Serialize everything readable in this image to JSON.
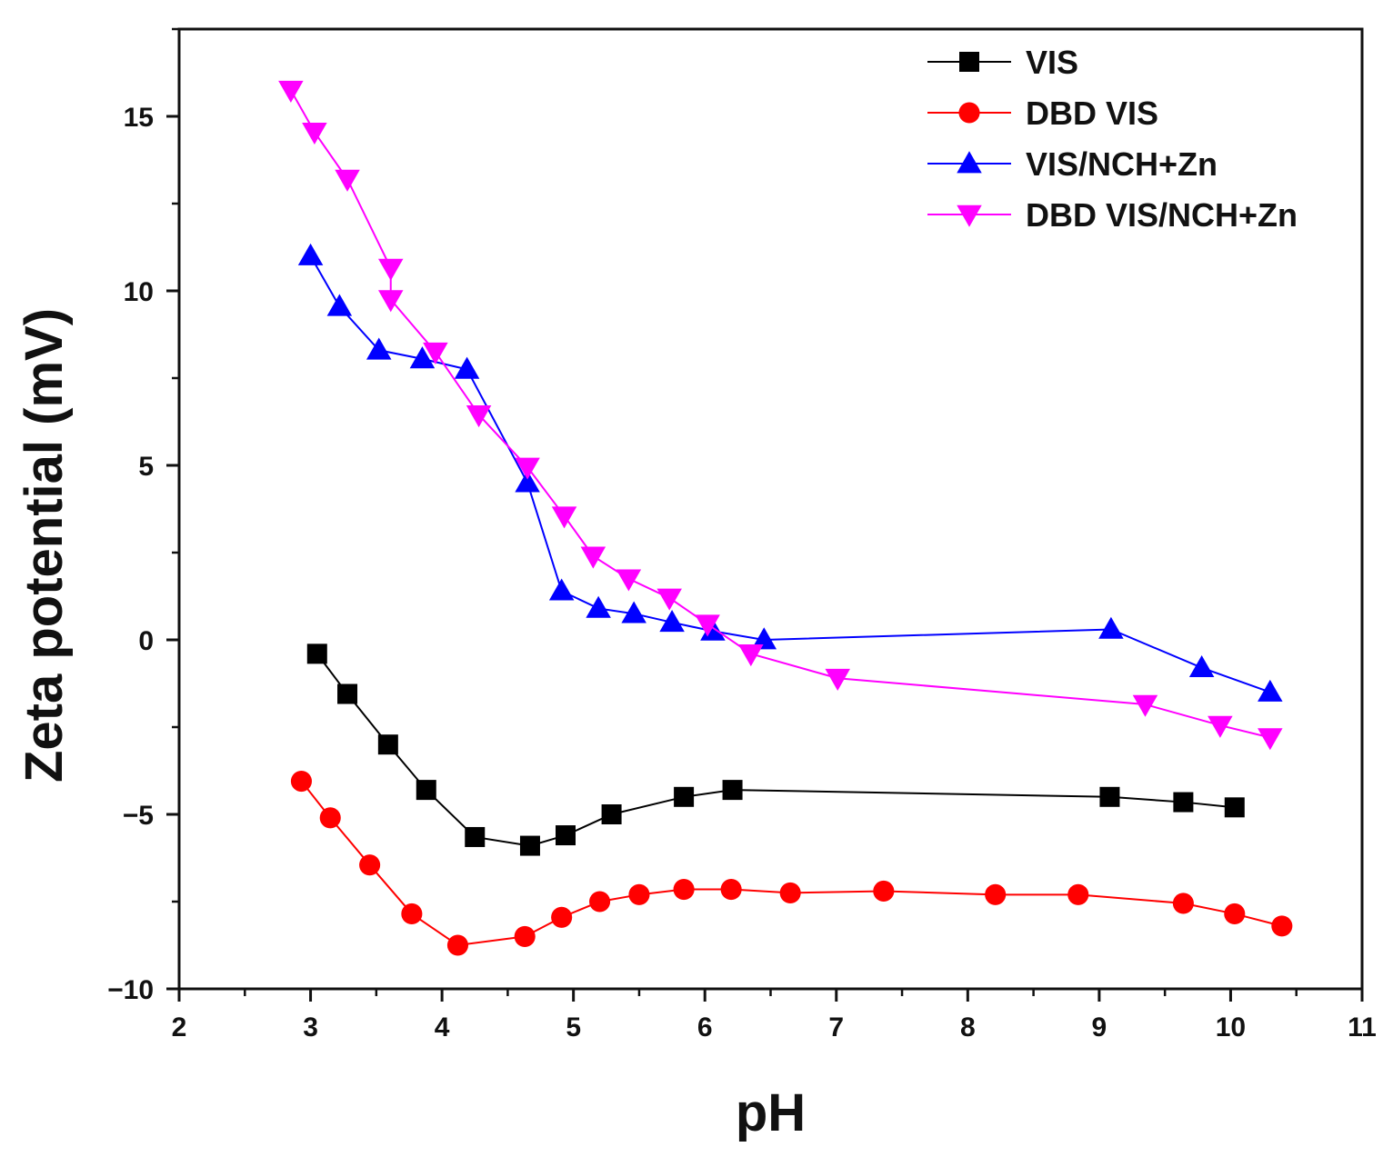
{
  "chart_data": {
    "type": "line",
    "title": "",
    "xlabel": "pH",
    "ylabel": "Zeta potential (mV)",
    "xlim": [
      2,
      11
    ],
    "ylim": [
      -10,
      17.5
    ],
    "xticks": [
      2,
      3,
      4,
      5,
      6,
      7,
      8,
      9,
      10,
      11
    ],
    "yticks": [
      -10,
      -5,
      0,
      5,
      10,
      15
    ],
    "ytick_labels": [
      "−10",
      "−5",
      "0",
      "5",
      "10",
      "15"
    ],
    "grid": false,
    "legend_position": "top-right",
    "series": [
      {
        "name": "VIS",
        "color": "#000000",
        "marker": "square",
        "x": [
          3.05,
          3.28,
          3.59,
          3.88,
          4.25,
          4.67,
          4.94,
          5.29,
          5.84,
          6.21,
          9.08,
          9.64,
          10.03
        ],
        "y": [
          -0.4,
          -1.55,
          -3.0,
          -4.3,
          -5.65,
          -5.9,
          -5.6,
          -5.0,
          -4.5,
          -4.3,
          -4.5,
          -4.65,
          -4.8
        ]
      },
      {
        "name": "DBD VIS",
        "color": "#ff0000",
        "marker": "circle",
        "x": [
          2.93,
          3.15,
          3.45,
          3.77,
          4.12,
          4.63,
          4.91,
          5.2,
          5.5,
          5.84,
          6.2,
          6.65,
          7.36,
          8.21,
          8.84,
          9.64,
          10.03,
          10.39
        ],
        "y": [
          -4.05,
          -5.1,
          -6.45,
          -7.85,
          -8.75,
          -8.5,
          -7.95,
          -7.5,
          -7.3,
          -7.15,
          -7.15,
          -7.25,
          -7.2,
          -7.3,
          -7.3,
          -7.55,
          -7.85,
          -8.2
        ]
      },
      {
        "name": "VIS/NCH+Zn",
        "color": "#0000ff",
        "marker": "triangle-up",
        "x": [
          3.0,
          3.22,
          3.52,
          3.85,
          4.19,
          4.65,
          4.91,
          5.19,
          5.46,
          5.75,
          6.06,
          6.45,
          9.09,
          9.78,
          10.3
        ],
        "y": [
          11.0,
          9.55,
          8.3,
          8.05,
          7.75,
          4.5,
          1.4,
          0.9,
          0.75,
          0.5,
          0.25,
          0.0,
          0.3,
          -0.8,
          -1.5
        ]
      },
      {
        "name": "DBD VIS/NCH+Zn",
        "color": "#ff00ff",
        "marker": "triangle-down",
        "x": [
          2.85,
          3.03,
          3.28,
          3.61,
          3.61,
          3.95,
          4.28,
          4.65,
          4.93,
          5.15,
          5.42,
          5.73,
          6.02,
          6.35,
          7.01,
          9.35,
          9.92,
          10.3
        ],
        "y": [
          15.75,
          14.55,
          13.2,
          10.65,
          9.75,
          8.25,
          6.45,
          4.95,
          3.55,
          2.4,
          1.75,
          1.2,
          0.45,
          -0.4,
          -1.1,
          -1.85,
          -2.45,
          -2.8
        ]
      }
    ]
  }
}
